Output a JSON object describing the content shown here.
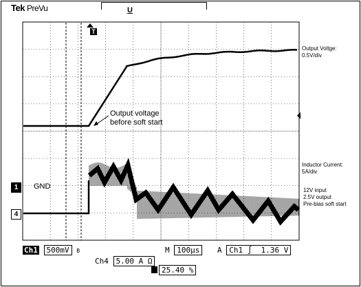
{
  "brand": {
    "name": "Tek",
    "mode": "PreVu"
  },
  "trigger_label": "T",
  "trigger_u": "U",
  "channel_notes": {
    "ch1_title": "Output Voltge:",
    "ch1_scale": "0.5V/div",
    "ch4_title": "Inductor Current:",
    "ch4_scale": "5A/div",
    "conditions": [
      "12V input",
      "2.5V output",
      "Pre-bias soft start"
    ]
  },
  "annotation": {
    "line1": "Output voltage",
    "line2": "before soft start"
  },
  "gnd_label": "GND",
  "markers": {
    "ch1": "1",
    "ch4": "4"
  },
  "status": {
    "ch1_name": "Ch1",
    "ch1_scale": "500mV",
    "ch1_coupling": "B",
    "timebase_prefix": "M",
    "timebase": "100µs",
    "trigger_mode": "A",
    "trigger_source": "Ch1",
    "trigger_slope": "∫",
    "trigger_level": "1.36 V",
    "ch4_name": "Ch4",
    "ch4_scale": "5.00 A Ω",
    "trigger_position": "25.40 %"
  }
}
